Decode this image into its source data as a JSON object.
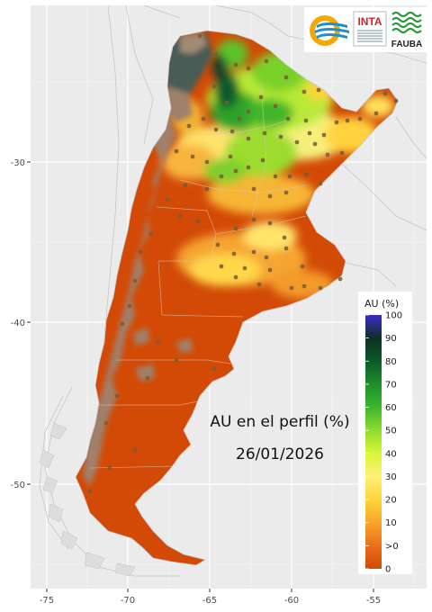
{
  "map": {
    "annotation_title": "AU en el perfil (%)",
    "annotation_date": "26/01/2026",
    "y_axis_labels": [
      "-30",
      "-40",
      "-50"
    ],
    "x_axis_labels": [
      "-75",
      "-70",
      "-65",
      "-60",
      "-55"
    ]
  },
  "legend": {
    "title": "AU (%)",
    "labels": [
      "100",
      "90",
      "80",
      "70",
      "60",
      "50",
      "40",
      "30",
      "20",
      "10",
      ">0",
      "0"
    ],
    "colors": [
      "#3b2cc8",
      "#0c2f24",
      "#0b5a2a",
      "#1e8f2a",
      "#3bb72e",
      "#8fdc2c",
      "#d9f53a",
      "#fff178",
      "#ffd43a",
      "#f9a52a",
      "#e8701d",
      "#d24a06"
    ]
  },
  "logos": {
    "inta_label": "INTA",
    "fauba_label": "FAUBA"
  },
  "colors": {
    "panel_bg": "#ebebeb",
    "gridline": "#ffffff",
    "dry_orange": "#d24a06",
    "no_data_brown": "#a0806a",
    "dark_slate": "#4a5b55",
    "station_point": "#7a5a3a"
  }
}
